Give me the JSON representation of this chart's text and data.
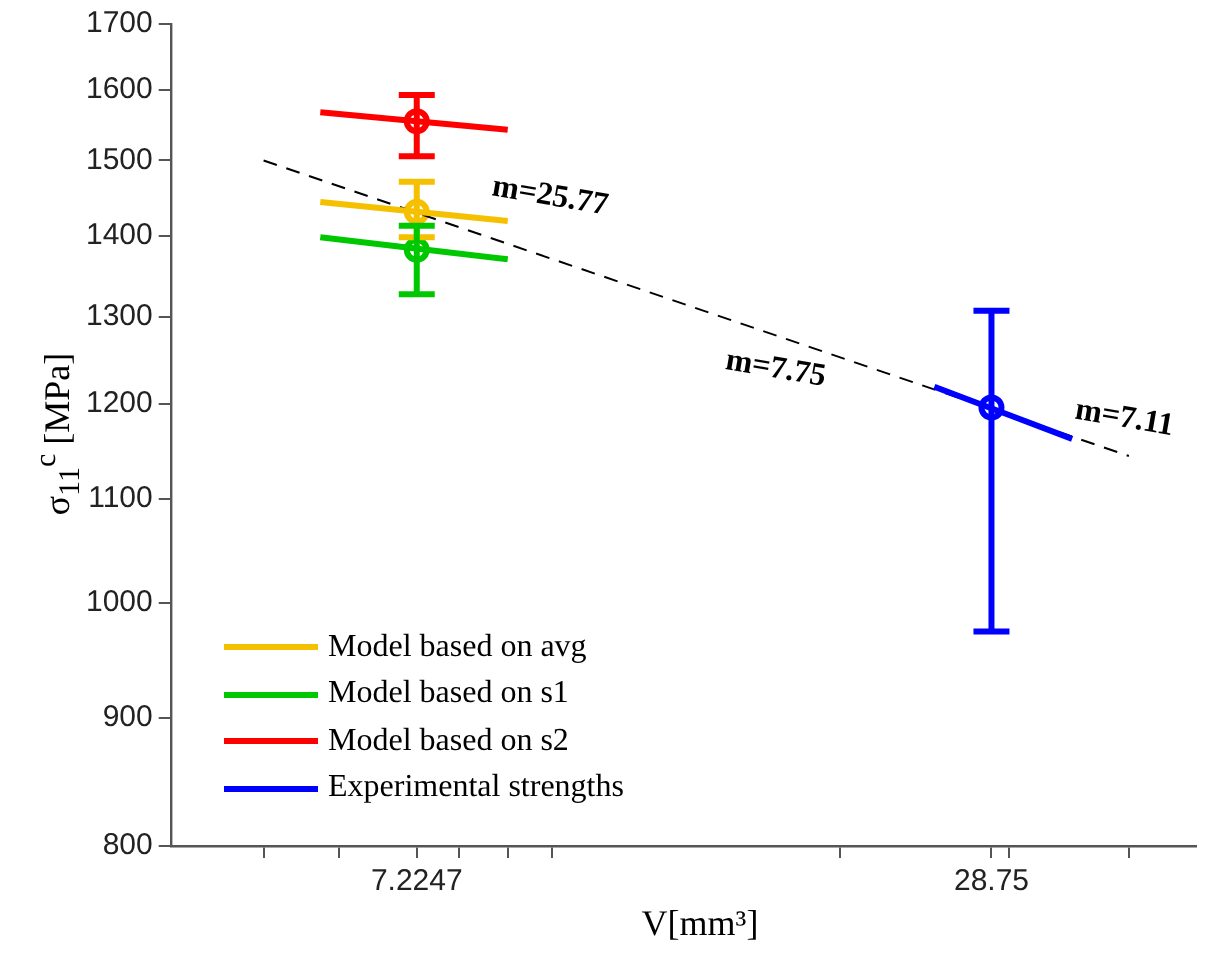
{
  "chart_data": {
    "type": "line",
    "xlabel": "V[mm³]",
    "ylabel": "σ$_{11}$$^{c}$ [MPa]",
    "log": "xy",
    "grid": false,
    "legend": "bottom left",
    "xlim": [
      4,
      47
    ],
    "xticks": [
      {
        "value": 5,
        "label": null
      },
      {
        "value": 6,
        "label": null
      },
      {
        "value": 7.2247,
        "label": "7.2247"
      },
      {
        "value": 8,
        "label": null
      },
      {
        "value": 9,
        "label": null
      },
      {
        "value": 10,
        "label": null
      },
      {
        "value": 20,
        "label": null
      },
      {
        "value": 28.75,
        "label": "28.75"
      },
      {
        "value": 30,
        "label": null
      },
      {
        "value": 40,
        "label": null
      }
    ],
    "ylim": [
      800,
      1700
    ],
    "yticks": [
      800,
      900,
      1000,
      1100,
      1200,
      1300,
      1400,
      1500,
      1600,
      1700
    ],
    "series": [
      {
        "name": "Model based on avg",
        "color": "#f5c000",
        "x": [
          5.73,
          8.99
        ],
        "values": [
          1444,
          1419
        ]
      },
      {
        "name": "Model based on s1",
        "color": "#00c800",
        "x": [
          5.73,
          8.99
        ],
        "values": [
          1398,
          1370
        ]
      },
      {
        "name": "Model based on s2",
        "color": "#ff0000",
        "x": [
          5.73,
          8.99
        ],
        "values": [
          1568,
          1543
        ]
      },
      {
        "name": "Experimental strengths",
        "color": "#0000ff",
        "x": [
          25.06,
          34.9
        ],
        "values": [
          1219,
          1162
        ]
      },
      {
        "color": "#000000",
        "line_style": "dashed",
        "x": [
          5,
          40
        ],
        "values": [
          1500,
          1144
        ]
      },
      {
        "type": "scatter",
        "marker": "circle",
        "color": "#f5c000",
        "x": [
          7.2247
        ],
        "values": [
          1431
        ],
        "errors": [
          [
            1398,
            1471
          ]
        ]
      },
      {
        "type": "scatter",
        "marker": "circle",
        "color": "#00c800",
        "x": [
          7.2247
        ],
        "values": [
          1382
        ],
        "errors": [
          [
            1327,
            1413
          ]
        ]
      },
      {
        "type": "scatter",
        "marker": "circle",
        "color": "#ff0000",
        "x": [
          7.2247
        ],
        "values": [
          1555
        ],
        "errors": [
          [
            1506,
            1593
          ]
        ]
      },
      {
        "type": "scatter",
        "marker": "circle",
        "color": "#0000ff",
        "x": [
          28.75
        ],
        "values": [
          1196
        ],
        "errors": [
          [
            974,
            1307
          ]
        ]
      }
    ],
    "annotations": [
      "m=25.77",
      "m=7.75",
      "m=7.11"
    ]
  }
}
